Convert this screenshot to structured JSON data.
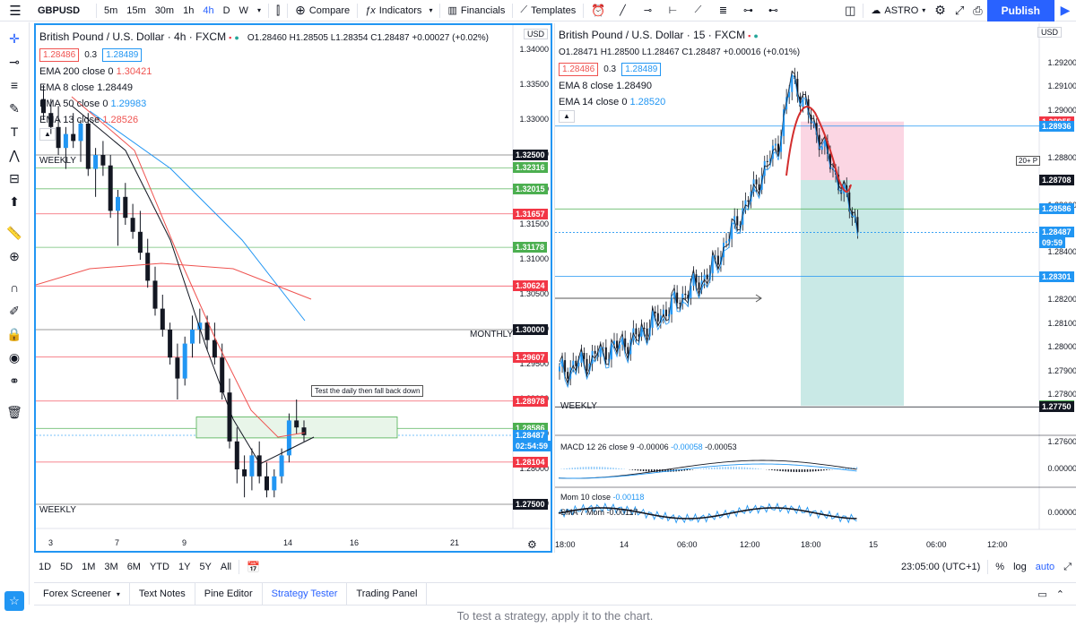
{
  "toolbar": {
    "symbol": "GBPUSD",
    "intervals": [
      "5m",
      "15m",
      "30m",
      "1h",
      "4h",
      "D",
      "W"
    ],
    "active_interval": "4h",
    "compare": "Compare",
    "indicators": "Indicators",
    "financials": "Financials",
    "templates": "Templates",
    "astro": "ASTRO",
    "publish": "Publish"
  },
  "left_chart": {
    "title": "British Pound / U.S. Dollar · 4h · FXCM",
    "ohlc": "O1.28460 H1.28505 L1.28354 C1.28487 +0.00027 (+0.02%)",
    "bid": "1.28486",
    "spread": "0.3",
    "ask": "1.28489",
    "ema1": {
      "label": "EMA 200 close 0",
      "value": "1.30421",
      "color": "#ef5350"
    },
    "ema2": {
      "label": "EMA 8 close",
      "value": "1.28449",
      "color": "#131722"
    },
    "ema3": {
      "label": "EMA 50 close 0",
      "value": "1.29983",
      "color": "#2196f3"
    },
    "ema4": {
      "label": "EMA 13 close",
      "value": "1.28526",
      "color": "#ef5350"
    },
    "currency": "USD",
    "weekly_top": "WEEKLY",
    "weekly_bottom": "WEEKLY",
    "monthly": "MONTHLY",
    "annotation": "Test the daily then fall back down",
    "countdown": "02:54:59",
    "axis_ticks": [
      "1.34000",
      "1.33500",
      "1.33000",
      "1.32500",
      "1.32000",
      "1.31500",
      "1.31000",
      "1.30500",
      "1.30000",
      "1.29500",
      "1.29000",
      "1.28500",
      "1.28000",
      "1.27500"
    ],
    "price_tags": [
      {
        "v": "1.32500",
        "c": "#131722"
      },
      {
        "v": "1.32316",
        "c": "#4caf50"
      },
      {
        "v": "1.32015",
        "c": "#4caf50"
      },
      {
        "v": "1.31657",
        "c": "#f23645"
      },
      {
        "v": "1.31178",
        "c": "#4caf50"
      },
      {
        "v": "1.30624",
        "c": "#f23645"
      },
      {
        "v": "1.30000",
        "c": "#131722"
      },
      {
        "v": "1.29607",
        "c": "#f23645"
      },
      {
        "v": "1.28978",
        "c": "#f23645"
      },
      {
        "v": "1.28586",
        "c": "#4caf50"
      },
      {
        "v": "1.28487",
        "c": "#2196f3"
      },
      {
        "v": "1.28104",
        "c": "#f23645"
      },
      {
        "v": "1.27500",
        "c": "#131722"
      }
    ],
    "time_ticks": [
      "3",
      "7",
      "9",
      "14",
      "16",
      "21"
    ]
  },
  "right_chart": {
    "title": "British Pound / U.S. Dollar · 15 · FXCM",
    "ohlc": "O1.28471 H1.28500 L1.28467 C1.28487 +0.00016 (+0.01%)",
    "bid": "1.28486",
    "spread": "0.3",
    "ask": "1.28489",
    "ema1": {
      "label": "EMA 8 close",
      "value": "1.28490",
      "color": "#131722"
    },
    "ema2": {
      "label": "EMA 14 close 0",
      "value": "1.28520",
      "color": "#2196f3"
    },
    "currency": "USD",
    "weekly": "WEEKLY",
    "countdown": "09:59",
    "more_badge": "20+ P",
    "axis_ticks": [
      "1.29200",
      "1.29100",
      "1.29000",
      "1.28800",
      "1.28600",
      "1.28400",
      "1.28200",
      "1.28100",
      "1.28000",
      "1.27900",
      "1.27800",
      "1.27600"
    ],
    "price_tags": [
      {
        "v": "1.28955",
        "c": "#f23645"
      },
      {
        "v": "1.28936",
        "c": "#2196f3"
      },
      {
        "v": "1.28708",
        "c": "#131722"
      },
      {
        "v": "1.28586",
        "c": "#2196f3"
      },
      {
        "v": "1.28487",
        "c": "#2196f3"
      },
      {
        "v": "1.28301",
        "c": "#2196f3"
      },
      {
        "v": "1.27755",
        "c": "#4caf50"
      },
      {
        "v": "1.27750",
        "c": "#131722"
      }
    ],
    "macd_label": "MACD 12 26 close 9",
    "macd_values": [
      "-0.00006",
      "-0.00058",
      "-0.00053"
    ],
    "macd_axis": "0.00000",
    "mom_label": "Mom 10 close",
    "mom_value": "-0.00118",
    "sma_label": "SMA 7 Mom",
    "sma_value": "-0.00117",
    "mom_axis": "0.00000",
    "time_ticks": [
      "18:00",
      "14",
      "06:00",
      "12:00",
      "18:00",
      "15",
      "06:00",
      "12:00"
    ]
  },
  "bottom_bar": {
    "ranges": [
      "1D",
      "5D",
      "1M",
      "3M",
      "6M",
      "YTD",
      "1Y",
      "5Y",
      "All"
    ],
    "clock": "23:05:00 (UTC+1)",
    "percent": "%",
    "log": "log",
    "auto": "auto"
  },
  "panel_tabs": [
    "Forex Screener",
    "Text Notes",
    "Pine Editor",
    "Strategy Tester",
    "Trading Panel"
  ],
  "active_panel": "Strategy Tester",
  "panel_message": "To test a strategy, apply it to the chart."
}
